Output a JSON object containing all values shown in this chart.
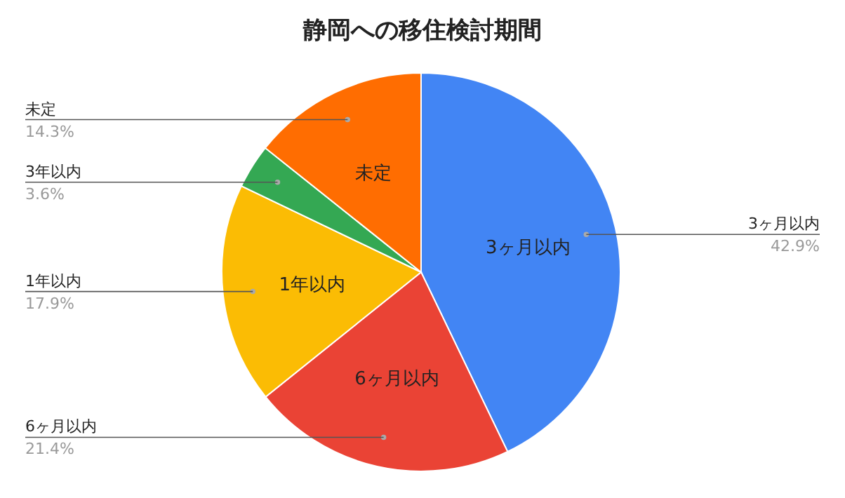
{
  "chart_data": {
    "type": "pie",
    "title": "静岡への移住検討期間",
    "categories": [
      "3ヶ月以内",
      "6ヶ月以内",
      "1年以内",
      "3年以内",
      "未定"
    ],
    "values": [
      42.9,
      21.4,
      17.9,
      3.6,
      14.3
    ],
    "colors": [
      "#4285f4",
      "#ea4335",
      "#fbbc04",
      "#34a853",
      "#ff6d01"
    ],
    "value_labels": [
      "42.9%",
      "21.4%",
      "17.9%",
      "3.6%",
      "14.3%"
    ]
  }
}
